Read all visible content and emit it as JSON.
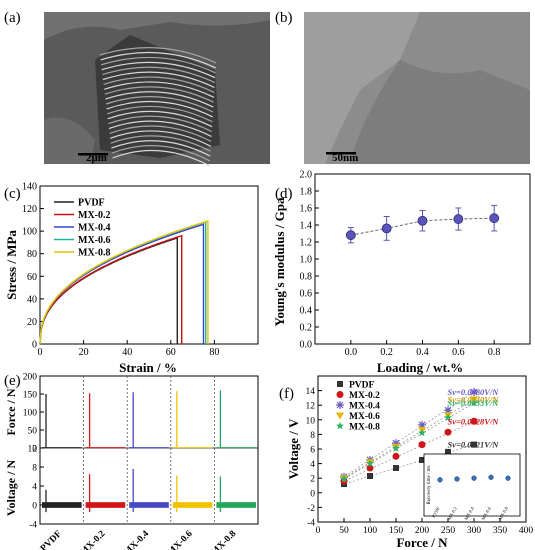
{
  "panels": {
    "a": {
      "label": "(a)",
      "scalebar": "2μm"
    },
    "b": {
      "label": "(b)",
      "scalebar": "50nm"
    },
    "c": {
      "label": "(c)"
    },
    "d": {
      "label": "(d)"
    },
    "e": {
      "label": "(e)"
    },
    "f": {
      "label": "(f)"
    }
  },
  "chart_data": [
    {
      "panel": "c",
      "type": "line",
      "xlabel": "Strain / %",
      "ylabel": "Stress / MPa",
      "xlim": [
        0,
        100
      ],
      "ylim": [
        0,
        140
      ],
      "xticks": [
        0,
        20,
        40,
        60,
        80
      ],
      "yticks": [
        0,
        20,
        40,
        60,
        80,
        100,
        120,
        140
      ],
      "legend_position": "top-left",
      "series": [
        {
          "name": "PVDF",
          "color": "#222222",
          "break_strain": 63,
          "max_stress": 94
        },
        {
          "name": "MX-0.2",
          "color": "#cc1111",
          "break_strain": 65,
          "max_stress": 96
        },
        {
          "name": "MX-0.4",
          "color": "#3344cc",
          "break_strain": 75,
          "max_stress": 106
        },
        {
          "name": "MX-0.6",
          "color": "#22b3a5",
          "break_strain": 76,
          "max_stress": 108
        },
        {
          "name": "MX-0.8",
          "color": "#e6c300",
          "break_strain": 77,
          "max_stress": 109
        }
      ]
    },
    {
      "panel": "d",
      "type": "scatter",
      "xlabel": "Loading / wt.%",
      "ylabel": "Young's modulus / Gpa",
      "xlim": [
        -0.2,
        1.0
      ],
      "ylim": [
        0,
        2.0
      ],
      "xticks": [
        0,
        0.2,
        0.4,
        0.6,
        0.8
      ],
      "yticks": [
        0,
        0.2,
        0.4,
        0.6,
        0.8,
        1.0,
        1.2,
        1.4,
        1.6,
        1.8,
        2.0
      ],
      "x": [
        0,
        0.2,
        0.4,
        0.6,
        0.8
      ],
      "y": [
        1.28,
        1.36,
        1.45,
        1.47,
        1.48
      ],
      "error": [
        0.09,
        0.14,
        0.12,
        0.13,
        0.15
      ],
      "color": "#5b55b8"
    },
    {
      "panel": "e",
      "type": "line",
      "categories": [
        "PVDF",
        "MX-0.2",
        "MX-0.4",
        "MX-0.6",
        "MX-0.8"
      ],
      "colors": [
        "#222222",
        "#d01616",
        "#4747c4",
        "#f2c200",
        "#22a65a"
      ],
      "top": {
        "ylabel": "Force / N",
        "ylim": [
          0,
          200
        ],
        "yticks": [
          0,
          50,
          100,
          150,
          200
        ],
        "peaks": [
          150,
          152,
          155,
          158,
          160
        ]
      },
      "bottom": {
        "ylabel": "Voltage / N",
        "ylim": [
          -4,
          12
        ],
        "yticks": [
          -4,
          0,
          4,
          8,
          12
        ],
        "peaks": [
          3.2,
          6.5,
          7.6,
          6.2,
          6.0
        ]
      }
    },
    {
      "panel": "f",
      "type": "scatter",
      "xlabel": "Force / N",
      "ylabel": "Voltage / V",
      "xlim": [
        0,
        400
      ],
      "ylim": [
        -4,
        16
      ],
      "xticks": [
        0,
        50,
        100,
        150,
        200,
        250,
        300,
        350,
        400
      ],
      "yticks": [
        -4,
        -2,
        0,
        2,
        4,
        6,
        8,
        10,
        12,
        14
      ],
      "legend_position": "top-left",
      "x": [
        50,
        100,
        150,
        200,
        250,
        300
      ],
      "series": [
        {
          "name": "PVDF",
          "marker": "square",
          "color": "#333333",
          "values": [
            1.2,
            2.3,
            3.4,
            4.5,
            5.6,
            6.6
          ],
          "fit_label": "Sv=0.0221V/N",
          "label_color": "#333333"
        },
        {
          "name": "MX-0.2",
          "marker": "circle",
          "color": "#d01616",
          "values": [
            1.6,
            3.4,
            5.0,
            6.6,
            8.3,
            9.8
          ],
          "fit_label": "Sv=0.0328V/N",
          "label_color": "#d01616"
        },
        {
          "name": "MX-0.4",
          "marker": "asterisk",
          "color": "#6a5ac0",
          "values": [
            2.2,
            4.5,
            6.8,
            9.3,
            11.3,
            13.8
          ],
          "fit_label": "Sv=0.0480V/N",
          "label_color": "#6a5ac0"
        },
        {
          "name": "MX-0.6",
          "marker": "triangle",
          "color": "#e8b800",
          "values": [
            2.0,
            4.2,
            6.3,
            8.6,
            10.6,
            12.8
          ],
          "fit_label": "Sv=0.0440V/N",
          "label_color": "#c89a00"
        },
        {
          "name": "MX-0.8",
          "marker": "star",
          "color": "#2bb36a",
          "values": [
            1.9,
            4.0,
            6.1,
            8.2,
            10.3,
            12.3
          ],
          "fit_label": "Sv=0.0433V/N",
          "label_color": "#2bb36a"
        }
      ],
      "inset": {
        "ylabel": "Recovery time / ms",
        "categories": [
          "PVDF",
          "MX-0.2",
          "MX-0.4",
          "MX-0.6",
          "MX-0.8"
        ],
        "values": [
          2.9,
          3.0,
          3.1,
          3.2,
          3.1
        ],
        "ylim": [
          0,
          6
        ]
      }
    }
  ]
}
